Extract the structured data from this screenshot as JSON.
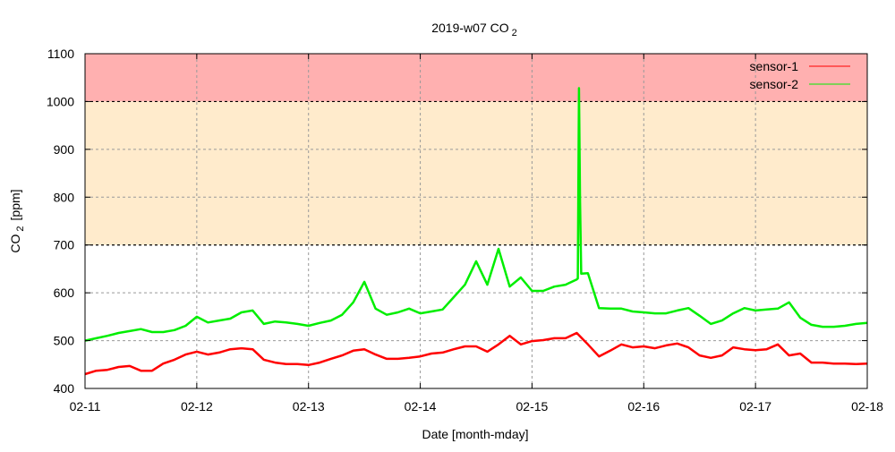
{
  "chart_data": {
    "type": "line",
    "title": "2019-w07 CO",
    "title_sub": "2",
    "xlabel": "Date [month-mday]",
    "ylabel": "CO",
    "ylabel_sub": "2",
    "ylabel_unit": "[ppm]",
    "xlim": [
      0,
      7
    ],
    "ylim": [
      400,
      1100
    ],
    "x_unit": "days since 02-11 00:00",
    "xticks": [
      {
        "x": 0,
        "label": "02-11"
      },
      {
        "x": 1,
        "label": "02-12"
      },
      {
        "x": 2,
        "label": "02-13"
      },
      {
        "x": 3,
        "label": "02-14"
      },
      {
        "x": 4,
        "label": "02-15"
      },
      {
        "x": 5,
        "label": "02-16"
      },
      {
        "x": 6,
        "label": "02-17"
      },
      {
        "x": 7,
        "label": "02-18"
      }
    ],
    "yticks": [
      400,
      500,
      600,
      700,
      800,
      900,
      1000,
      1100
    ],
    "grid": true,
    "legend_position": "top-right",
    "bands": [
      {
        "from": 1000,
        "to": 1100,
        "color": "#ffb0b0"
      },
      {
        "from": 700,
        "to": 1000,
        "color": "#ffebcc"
      }
    ],
    "series": [
      {
        "name": "sensor-1",
        "color": "#ff0000",
        "x": [
          0,
          0.1,
          0.2,
          0.3,
          0.4,
          0.5,
          0.6,
          0.7,
          0.8,
          0.9,
          1,
          1.1,
          1.2,
          1.3,
          1.4,
          1.5,
          1.6,
          1.7,
          1.8,
          1.9,
          2,
          2.1,
          2.2,
          2.3,
          2.4,
          2.5,
          2.6,
          2.7,
          2.8,
          2.9,
          3,
          3.1,
          3.2,
          3.3,
          3.4,
          3.5,
          3.6,
          3.7,
          3.8,
          3.9,
          4,
          4.1,
          4.2,
          4.3,
          4.4,
          4.5,
          4.6,
          4.7,
          4.8,
          4.9,
          5,
          5.1,
          5.2,
          5.3,
          5.4,
          5.5,
          5.6,
          5.7,
          5.8,
          5.9,
          6,
          6.1,
          6.2,
          6.3,
          6.4,
          6.5,
          6.6,
          6.7,
          6.8,
          6.9,
          7
        ],
        "values": [
          430,
          437,
          439,
          445,
          447,
          437,
          437,
          452,
          460,
          471,
          477,
          471,
          475,
          482,
          484,
          482,
          460,
          454,
          451,
          451,
          449,
          454,
          462,
          469,
          479,
          482,
          471,
          462,
          462,
          464,
          467,
          473,
          475,
          482,
          488,
          488,
          477,
          492,
          510,
          492,
          499,
          501,
          505,
          505,
          516,
          492,
          467,
          479,
          492,
          486,
          488,
          484,
          490,
          494,
          486,
          469,
          464,
          469,
          486,
          482,
          480,
          482,
          492,
          469,
          473,
          454,
          454,
          452,
          452,
          451,
          452
        ]
      },
      {
        "name": "sensor-2",
        "color": "#00ee00",
        "x": [
          0,
          0.1,
          0.2,
          0.3,
          0.4,
          0.5,
          0.6,
          0.7,
          0.8,
          0.9,
          1,
          1.1,
          1.2,
          1.3,
          1.4,
          1.5,
          1.6,
          1.7,
          1.8,
          1.9,
          2,
          2.1,
          2.2,
          2.3,
          2.4,
          2.5,
          2.6,
          2.7,
          2.8,
          2.9,
          3,
          3.1,
          3.2,
          3.3,
          3.4,
          3.5,
          3.6,
          3.7,
          3.8,
          3.9,
          4,
          4.1,
          4.2,
          4.3,
          4.4,
          4.41,
          4.42,
          4.43,
          4.44,
          4.5,
          4.6,
          4.7,
          4.8,
          4.9,
          5,
          5.1,
          5.2,
          5.3,
          5.4,
          5.5,
          5.6,
          5.7,
          5.8,
          5.9,
          6,
          6.1,
          6.2,
          6.3,
          6.4,
          6.5,
          6.6,
          6.7,
          6.8,
          6.9,
          7
        ],
        "values": [
          500,
          505,
          510,
          516,
          520,
          524,
          518,
          518,
          522,
          531,
          550,
          538,
          542,
          546,
          559,
          563,
          535,
          540,
          538,
          535,
          531,
          537,
          542,
          554,
          580,
          623,
          567,
          554,
          559,
          567,
          557,
          561,
          565,
          591,
          617,
          666,
          617,
          692,
          613,
          632,
          604,
          604,
          613,
          617,
          628,
          630,
          1028,
          790,
          640,
          641,
          568,
          567,
          567,
          561,
          559,
          557,
          557,
          563,
          568,
          552,
          535,
          542,
          557,
          568,
          563,
          565,
          567,
          580,
          548,
          533,
          529,
          529,
          531,
          535,
          537
        ]
      }
    ]
  }
}
